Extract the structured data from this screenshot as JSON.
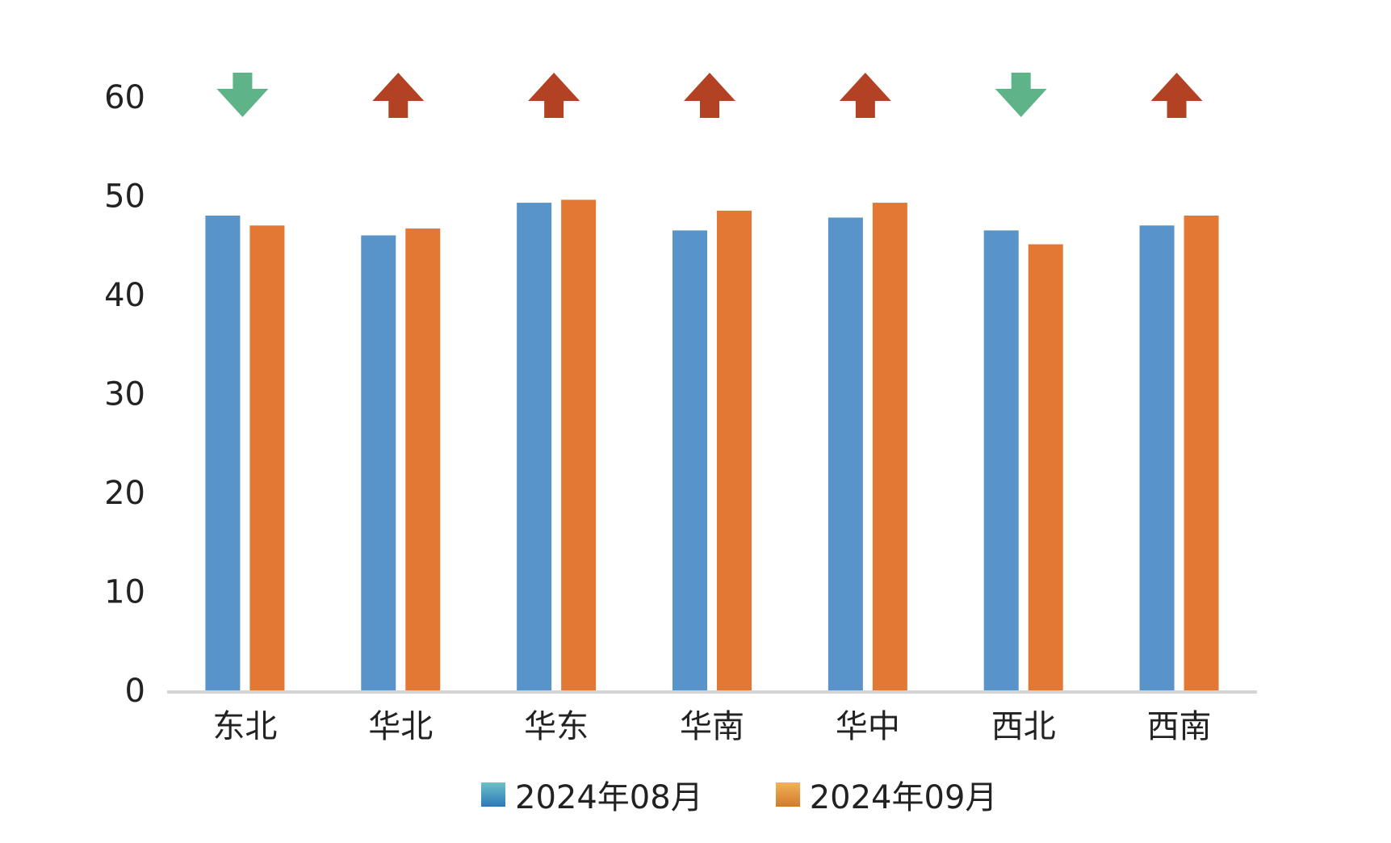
{
  "chart_data": {
    "type": "bar",
    "categories": [
      "东北",
      "华北",
      "华东",
      "华南",
      "华中",
      "西北",
      "西南"
    ],
    "series": [
      {
        "name": "2024年08月",
        "color": "#5894c9",
        "values": [
          48.0,
          46.0,
          49.3,
          46.5,
          47.8,
          46.5,
          47.0
        ]
      },
      {
        "name": "2024年09月",
        "color": "#e27833",
        "values": [
          47.0,
          46.7,
          49.6,
          48.5,
          49.3,
          45.1,
          48.0
        ]
      }
    ],
    "ylim": [
      0,
      60
    ],
    "yticks": [
      0,
      10,
      20,
      30,
      40,
      50,
      60
    ],
    "trend_markers": [
      "down",
      "up",
      "up",
      "up",
      "up",
      "down",
      "up"
    ],
    "marker_colors": {
      "up": "#b34224",
      "down": "#5fb389"
    },
    "grid": false,
    "legend_position": "bottom",
    "title": "",
    "xlabel": "",
    "ylabel": ""
  }
}
